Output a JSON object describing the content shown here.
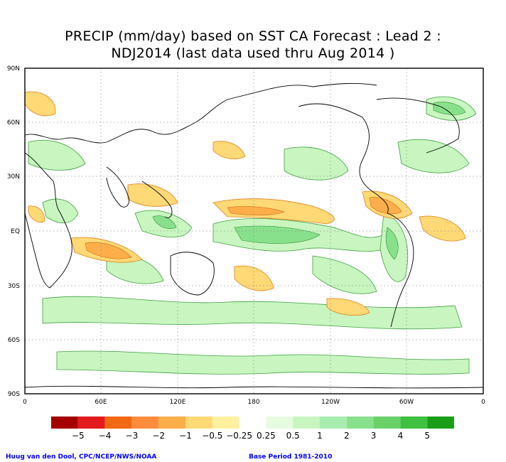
{
  "title_line1": "PRECIP (mm/day) based on SST CA Forecast : Lead 2 :",
  "title_line2": "NDJ2014 (last data used thru Aug 2014 )",
  "lat_labels": [
    "90N",
    "60N",
    "30N",
    "EQ",
    "30S",
    "60S",
    "90S"
  ],
  "lon_labels": [
    "0",
    "60E",
    "120E",
    "180",
    "120W",
    "60W",
    "0"
  ],
  "colorbar": {
    "colors": [
      "#a50000",
      "#e31a1c",
      "#f16913",
      "#fd8d3c",
      "#fdae4b",
      "#fed976",
      "#fff0a0",
      "#ffffff",
      "#e6fbe0",
      "#c8f5c0",
      "#a8ecb0",
      "#88e08c",
      "#6ad06a",
      "#40c040",
      "#1a9e1a"
    ],
    "labels": [
      "−5",
      "−4",
      "−3",
      "−2",
      "−1",
      "−0.5",
      "−0.25",
      "0.25",
      "0.5",
      "1",
      "2",
      "3",
      "4",
      "5"
    ]
  },
  "footer_left": "Huug van den Dool, CPC/NCEP/NWS/NOAA",
  "footer_right": "Base Period 1981-2010"
}
